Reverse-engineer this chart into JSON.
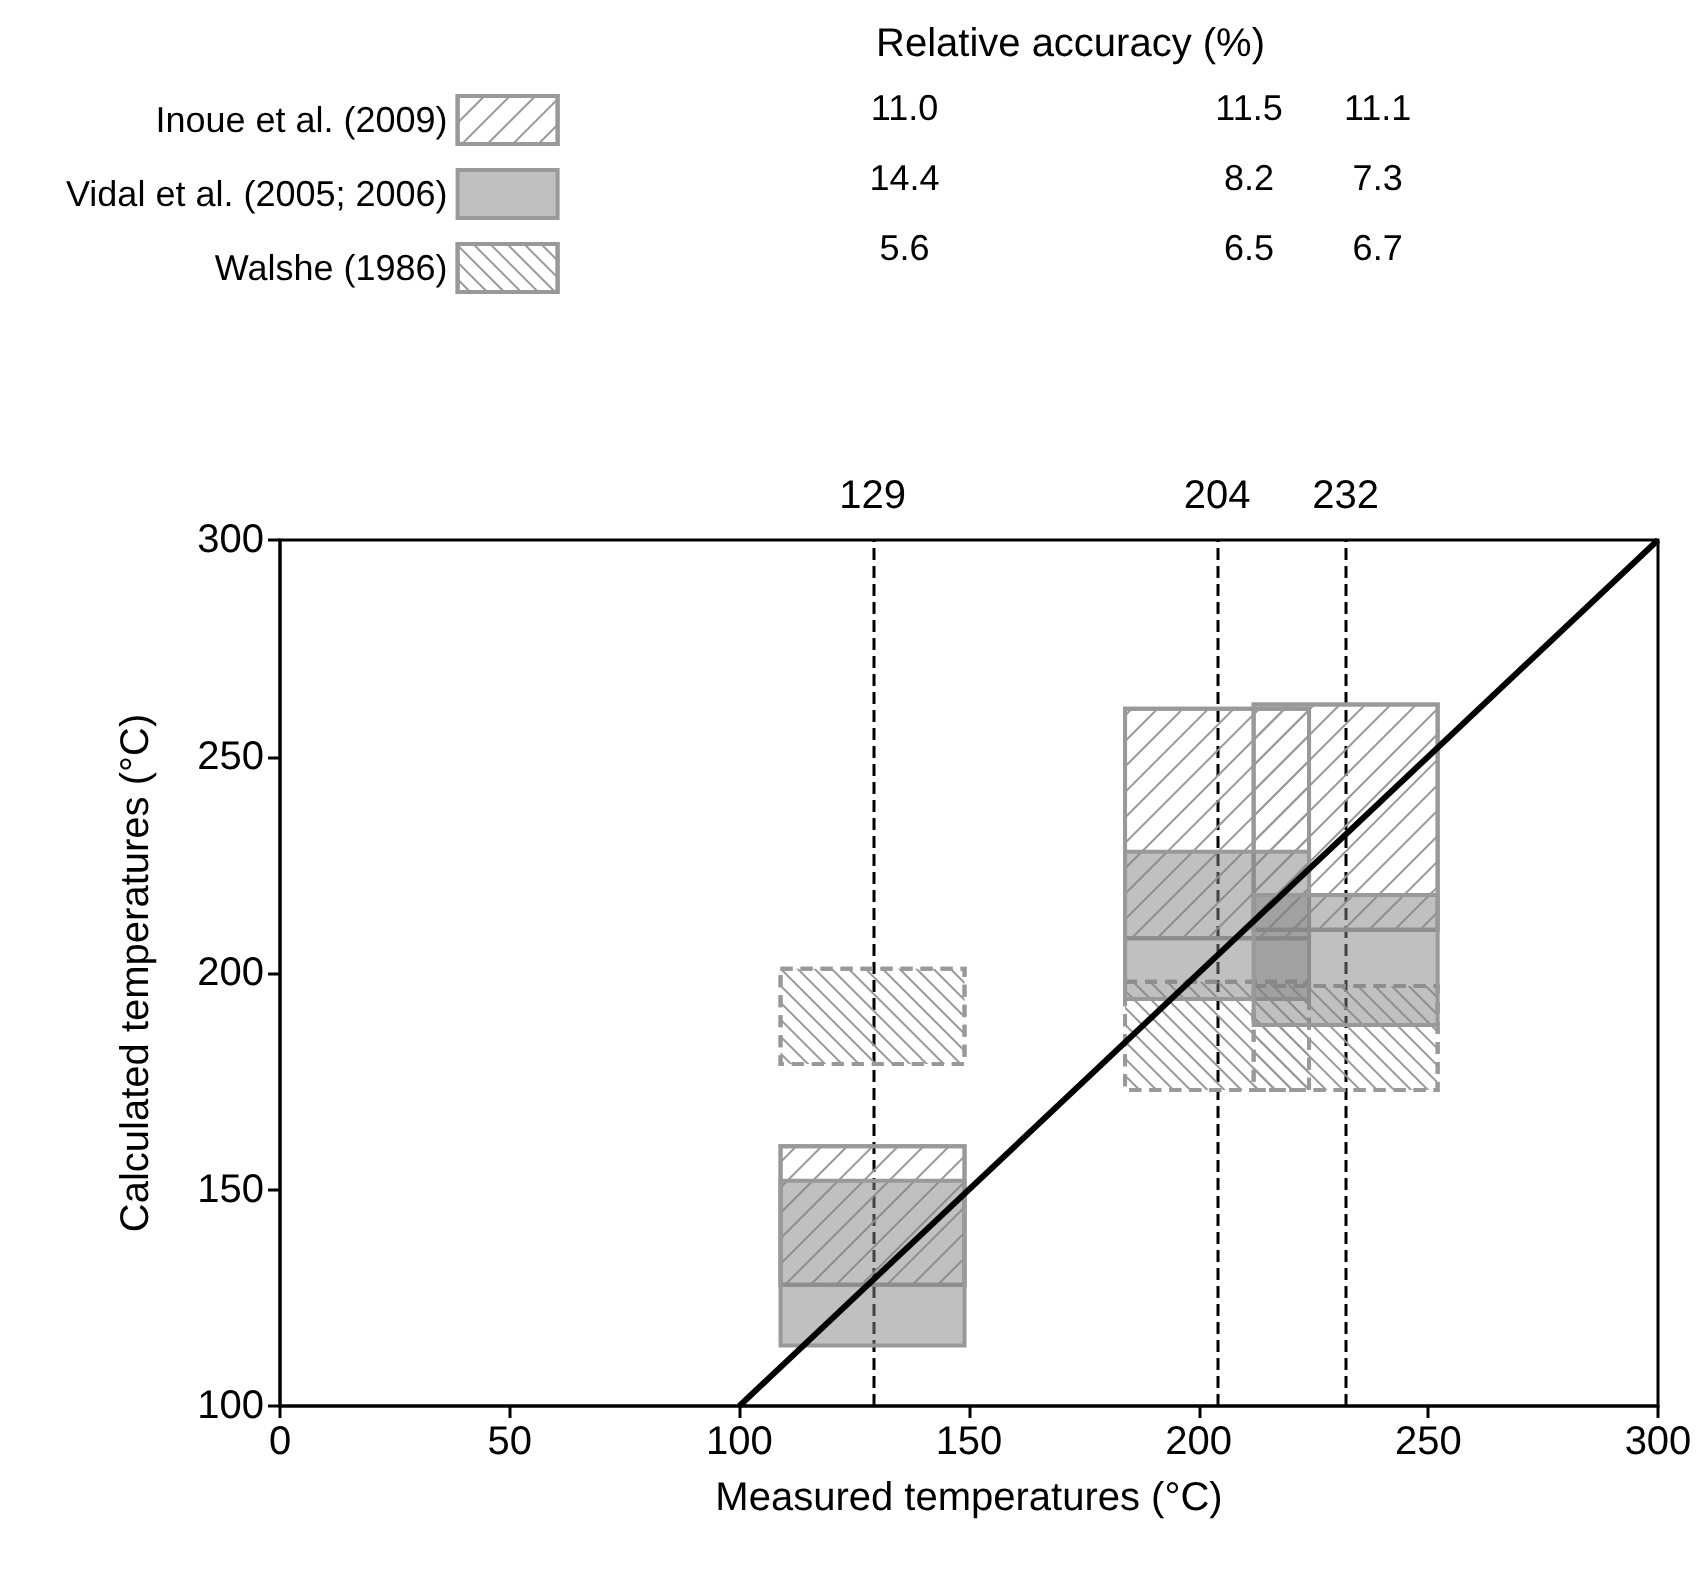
{
  "chart_data": {
    "type": "bar",
    "xlabel": "Measured temperatures (°C)",
    "ylabel": "Calculated temperatures (°C)",
    "x": [
      129,
      204,
      232
    ],
    "series": [
      {
        "name": "Inoue et al. (2009)",
        "color": "#999999",
        "base": [
          128,
          208,
          210
        ],
        "values": [
          32,
          53,
          52
        ]
      },
      {
        "name": "Vidal et al. (2005; 2006)",
        "color": "#c0c0c0",
        "base": [
          114,
          194,
          188
        ],
        "values": [
          38,
          34,
          30
        ]
      },
      {
        "name": "Walshe (1986)",
        "color": "#999999",
        "base": [
          179,
          173,
          173
        ],
        "values": [
          22,
          25,
          24
        ]
      },
      {
        "type": "line",
        "color": "#000000",
        "x": [
          100,
          300
        ],
        "values": [
          100,
          300
        ]
      }
    ],
    "xlim": [
      0,
      300
    ],
    "xticks": [
      0,
      50,
      100,
      150,
      200,
      250,
      300
    ],
    "ylim": [
      100,
      300
    ],
    "yticks": [
      100,
      150,
      200,
      250,
      300
    ],
    "ref_lines": [
      {
        "axis": "x",
        "value": 129,
        "label": "129",
        "line_style": "dashed"
      },
      {
        "axis": "x",
        "value": 204,
        "label": "204",
        "line_style": "dashed"
      },
      {
        "axis": "x",
        "value": 232,
        "label": "232",
        "line_style": "dashed"
      }
    ],
    "annotations": [
      "Relative accuracy (%)",
      "11.0",
      "11.5",
      "11.1",
      "14.4",
      "8.2",
      "7.3",
      "5.6",
      "6.5",
      "6.7"
    ],
    "legend": "top left"
  }
}
